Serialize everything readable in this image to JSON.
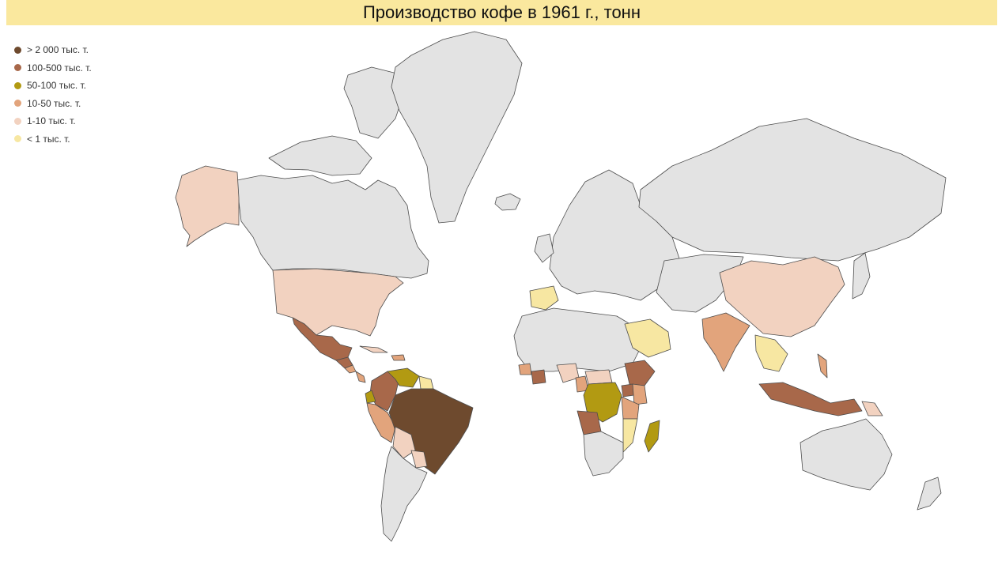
{
  "title": "Производство кофе в 1961 г., тонн",
  "legend": [
    {
      "label": "> 2 000 тыс. т.",
      "color": "#6e4a2e"
    },
    {
      "label": "100-500 тыс. т.",
      "color": "#a8684a"
    },
    {
      "label": "50-100 тыс. т.",
      "color": "#b29a12"
    },
    {
      "label": "10-50 тыс. т.",
      "color": "#e2a47c"
    },
    {
      "label": "1-10 тыс. т.",
      "color": "#f2d2c0"
    },
    {
      "label": "< 1 тыс. т.",
      "color": "#f7e7a2"
    }
  ],
  "no_data_color": "#e3e3e3",
  "regions": [
    {
      "name": "Brazil",
      "category": 0
    },
    {
      "name": "Mexico",
      "category": 1
    },
    {
      "name": "Colombia",
      "category": 1
    },
    {
      "name": "Guatemala",
      "category": 1
    },
    {
      "name": "Ethiopia",
      "category": 1
    },
    {
      "name": "Uganda",
      "category": 1
    },
    {
      "name": "Angola",
      "category": 1
    },
    {
      "name": "Ivory Coast",
      "category": 1
    },
    {
      "name": "Indonesia",
      "category": 1
    },
    {
      "name": "Venezuela",
      "category": 2
    },
    {
      "name": "Ecuador",
      "category": 2
    },
    {
      "name": "DR Congo",
      "category": 2
    },
    {
      "name": "Madagascar",
      "category": 2
    },
    {
      "name": "Peru",
      "category": 3
    },
    {
      "name": "India",
      "category": 3
    },
    {
      "name": "Tanzania",
      "category": 3
    },
    {
      "name": "Kenya",
      "category": 3
    },
    {
      "name": "Cameroon",
      "category": 3
    },
    {
      "name": "Guinea",
      "category": 3
    },
    {
      "name": "Philippines",
      "category": 3
    },
    {
      "name": "Costa Rica",
      "category": 3
    },
    {
      "name": "El Salvador",
      "category": 3
    },
    {
      "name": "Dominican Republic",
      "category": 3
    },
    {
      "name": "United States",
      "category": 4
    },
    {
      "name": "Alaska",
      "category": 4
    },
    {
      "name": "China",
      "category": 4
    },
    {
      "name": "Bolivia",
      "category": 4
    },
    {
      "name": "Paraguay",
      "category": 4
    },
    {
      "name": "Central African Republic",
      "category": 4
    },
    {
      "name": "Nigeria",
      "category": 4
    },
    {
      "name": "Cuba",
      "category": 4
    },
    {
      "name": "Papua New Guinea",
      "category": 4
    },
    {
      "name": "Spain",
      "category": 5
    },
    {
      "name": "Saudi Arabia",
      "category": 5
    },
    {
      "name": "Thailand",
      "category": 5
    },
    {
      "name": "Mozambique",
      "category": 5
    },
    {
      "name": "Guyana",
      "category": 5
    }
  ]
}
